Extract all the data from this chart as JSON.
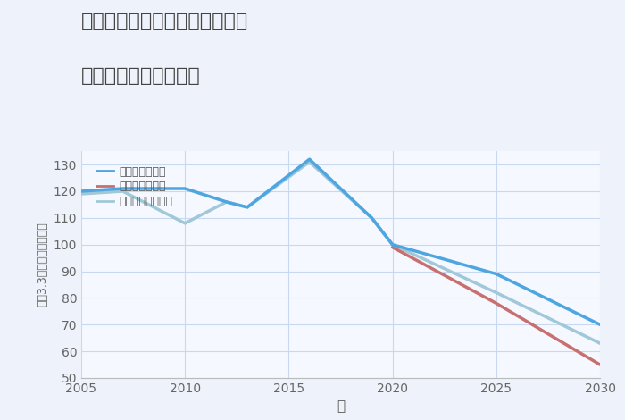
{
  "title_line1": "埼玉県比企郡川島町牛ヶ谷戸の",
  "title_line2": "中古戸建ての価格推移",
  "xlabel": "年",
  "ylabel": "坪（3.3㎡）単価（万円）",
  "ylim": [
    50,
    135
  ],
  "xlim": [
    2005,
    2030
  ],
  "yticks": [
    50,
    60,
    70,
    80,
    90,
    100,
    110,
    120,
    130
  ],
  "xticks": [
    2005,
    2010,
    2015,
    2020,
    2025,
    2030
  ],
  "background_color": "#f5f8ff",
  "fig_background": "#eef2fa",
  "grid_color": "#c8d8f0",
  "series": {
    "good": {
      "label": "グッドシナリオ",
      "color": "#4da6e0",
      "linewidth": 2.5,
      "x": [
        2005,
        2007,
        2010,
        2012,
        2013,
        2016,
        2019,
        2020,
        2025,
        2030
      ],
      "y": [
        120,
        121,
        121,
        116,
        114,
        132,
        110,
        100,
        89,
        70
      ]
    },
    "bad": {
      "label": "バッドシナリオ",
      "color": "#c87070",
      "linewidth": 2.5,
      "x": [
        2020,
        2025,
        2030
      ],
      "y": [
        99,
        78,
        55
      ]
    },
    "normal": {
      "label": "ノーマルシナリオ",
      "color": "#a0c8d8",
      "linewidth": 2.5,
      "x": [
        2005,
        2007,
        2010,
        2012,
        2013,
        2016,
        2019,
        2020,
        2025,
        2030
      ],
      "y": [
        119,
        120,
        108,
        116,
        114,
        131,
        110,
        100,
        82,
        63
      ]
    }
  }
}
